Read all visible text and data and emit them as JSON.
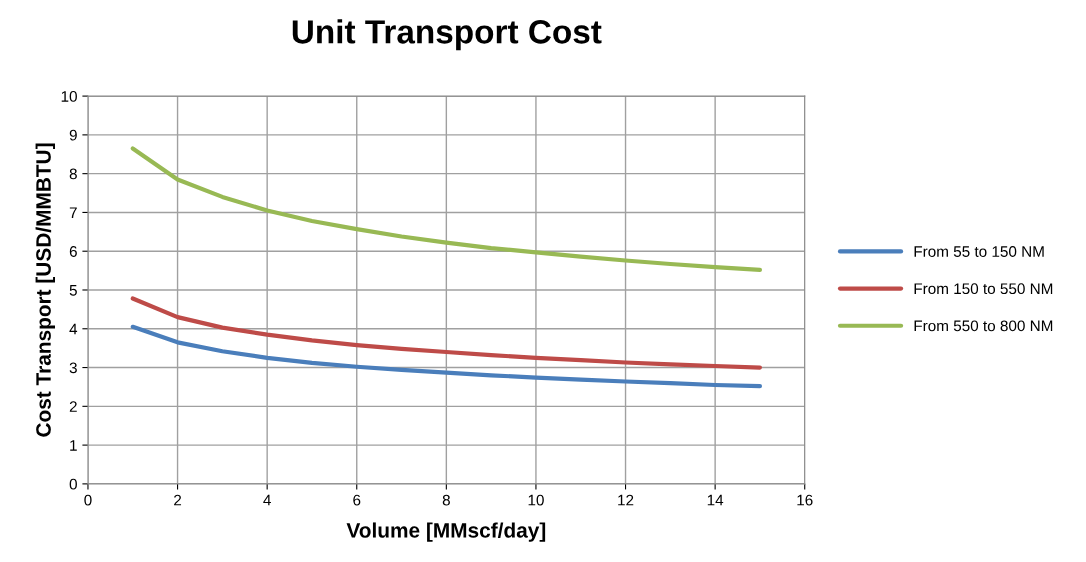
{
  "chart_data": {
    "type": "line",
    "title": "Unit Transport Cost",
    "xlabel": "Volume [MMscf/day]",
    "ylabel": "Cost Transport [USD/MMBTU]",
    "x": [
      1,
      2,
      3,
      4,
      5,
      6,
      7,
      8,
      9,
      10,
      11,
      12,
      13,
      14,
      15
    ],
    "series": [
      {
        "name": "From 55 to 150 NM",
        "color": "#4a7ebb",
        "values": [
          4.05,
          3.65,
          3.42,
          3.25,
          3.12,
          3.02,
          2.94,
          2.87,
          2.8,
          2.74,
          2.69,
          2.64,
          2.6,
          2.55,
          2.52
        ]
      },
      {
        "name": "From 150 to 550 NM",
        "color": "#be4b48",
        "values": [
          4.78,
          4.3,
          4.03,
          3.85,
          3.7,
          3.58,
          3.48,
          3.4,
          3.32,
          3.25,
          3.19,
          3.13,
          3.08,
          3.04,
          3.0
        ]
      },
      {
        "name": "From 550 to 800 NM",
        "color": "#98b954",
        "values": [
          8.65,
          7.85,
          7.4,
          7.05,
          6.78,
          6.57,
          6.38,
          6.22,
          6.08,
          5.97,
          5.86,
          5.76,
          5.67,
          5.59,
          5.52
        ]
      }
    ],
    "xlim": [
      0,
      16
    ],
    "xticks": [
      0,
      2,
      4,
      6,
      8,
      10,
      12,
      14,
      16
    ],
    "ylim": [
      0,
      10
    ],
    "yticks": [
      0,
      1,
      2,
      3,
      4,
      5,
      6,
      7,
      8,
      9,
      10
    ],
    "grid": true,
    "legend": "right",
    "marker": "none",
    "line_style": "solid"
  }
}
